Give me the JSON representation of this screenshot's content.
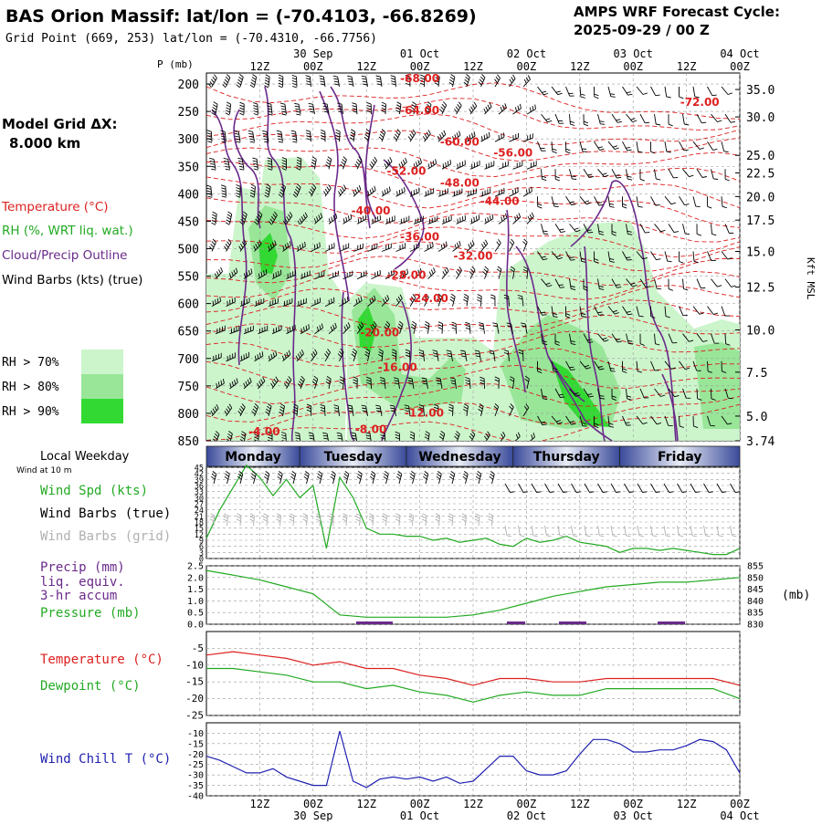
{
  "header": {
    "site_title": "BAS Orion Massif:  lat/lon = (-70.4103, -66.8269)",
    "grid_point": "Grid Point (669, 253) lat/lon = (-70.4310, -66.7756)",
    "cycle_label": "AMPS WRF Forecast Cycle:",
    "cycle_value": "2025-09-29 / 00  Z"
  },
  "left_panel": {
    "model_grid_label": "Model Grid ΔX:",
    "model_grid_value": "8.000 km",
    "legend": [
      {
        "label": "Temperature (°C)",
        "color": "#dd2020"
      },
      {
        "label": "RH (%, WRT liq. wat.)",
        "color": "#22aa22"
      },
      {
        "label": "Cloud/Precip Outline",
        "color": "#6a2a8a"
      },
      {
        "label": "Wind Barbs (kts) (true)",
        "color": "#000000"
      }
    ],
    "rh_swatches": [
      {
        "label": "RH > 70%",
        "color": "#ccf5cc"
      },
      {
        "label": "RH > 80%",
        "color": "#99e699"
      },
      {
        "label": "RH > 90%",
        "color": "#33d933"
      }
    ],
    "local_weekday": "Local Weekday",
    "wind_at": "Wind at 10 m",
    "panel2_labels": [
      {
        "label": "Wind Spd (kts)",
        "color": "#22aa22"
      },
      {
        "label": "Wind Barbs (true)",
        "color": "#000000"
      },
      {
        "label": "Wind Barbs (grid)",
        "color": "#b0b0b0"
      }
    ],
    "panel3_labels": [
      {
        "label": "Precip (mm)",
        "color": "#6a2a8a"
      },
      {
        "label": "liq. equiv.",
        "color": "#6a2a8a"
      },
      {
        "label": "3-hr accum",
        "color": "#6a2a8a"
      },
      {
        "label": "Pressure (mb)",
        "color": "#22aa22"
      }
    ],
    "panel4_labels": [
      {
        "label": "Temperature (°C)",
        "color": "#dd2020"
      },
      {
        "label": "Dewpoint (°C)",
        "color": "#22aa22"
      }
    ],
    "panel5_labels": [
      {
        "label": "Wind Chill T (°C)",
        "color": "#2020b0"
      }
    ]
  },
  "chart_data": [
    {
      "type": "heatmap",
      "name": "Vertical cross-section",
      "ylabel_left": "P (mb)",
      "ylabel_right": "Kft MSL",
      "pressure_ticks": [
        200,
        250,
        300,
        350,
        400,
        450,
        500,
        550,
        600,
        650,
        700,
        750,
        800,
        850
      ],
      "height_ticks": [
        "35.0",
        "30.0",
        "25.0",
        "22.5",
        "20.0",
        "17.5",
        "15.0",
        "12.5",
        "10.0",
        "7.5",
        "5.0",
        "3.74"
      ],
      "height_tick_pressure": [
        210,
        260,
        330,
        362,
        405,
        448,
        505,
        570,
        648,
        725,
        805,
        850
      ],
      "time_tick_labels": [
        "12Z",
        "00Z",
        "12Z",
        "00Z",
        "12Z",
        "00Z",
        "12Z",
        "00Z",
        "12Z",
        "00Z"
      ],
      "time_tick_hours": [
        12,
        24,
        36,
        48,
        60,
        72,
        84,
        96,
        108,
        120
      ],
      "date_labels": [
        {
          "label": "30 Sep",
          "hour": 24
        },
        {
          "label": "01 Oct",
          "hour": 48
        },
        {
          "label": "02 Oct",
          "hour": 72
        },
        {
          "label": "03 Oct",
          "hour": 96
        },
        {
          "label": "04 Oct",
          "hour": 120
        }
      ],
      "time_range_hours": [
        0,
        120
      ],
      "pressure_range": [
        180,
        850
      ],
      "temperature_labels": [
        {
          "text": "-68.00",
          "hour": 48,
          "p": 197
        },
        {
          "text": "-64.00",
          "hour": 48,
          "p": 255
        },
        {
          "text": "-72.00",
          "hour": 111,
          "p": 240
        },
        {
          "text": "-60.00",
          "hour": 57,
          "p": 312
        },
        {
          "text": "-56.00",
          "hour": 69,
          "p": 332
        },
        {
          "text": "-52.00",
          "hour": 45,
          "p": 365
        },
        {
          "text": "-48.00",
          "hour": 57,
          "p": 387
        },
        {
          "text": "-44.00",
          "hour": 66,
          "p": 420
        },
        {
          "text": "-40.00",
          "hour": 37,
          "p": 438
        },
        {
          "text": "-36.00",
          "hour": 48,
          "p": 485
        },
        {
          "text": "-32.00",
          "hour": 60,
          "p": 520
        },
        {
          "text": "-28.00",
          "hour": 45,
          "p": 555
        },
        {
          "text": "-24.00",
          "hour": 50,
          "p": 597
        },
        {
          "text": "-20.00",
          "hour": 39,
          "p": 660
        },
        {
          "text": "-16.00",
          "hour": 43,
          "p": 723
        },
        {
          "text": "-12.00",
          "hour": 49,
          "p": 806
        },
        {
          "text": "-8.00",
          "hour": 37,
          "p": 836
        },
        {
          "text": "-4.00",
          "hour": 13,
          "p": 840
        }
      ]
    },
    {
      "type": "line",
      "name": "10 m wind speed",
      "ylabel": "kts",
      "y_ticks": [
        45,
        42,
        39,
        36,
        33,
        30,
        27,
        24,
        21,
        18,
        15,
        12,
        9,
        6,
        3,
        0
      ],
      "ylim": [
        0,
        45
      ],
      "x_hours": [
        0,
        3,
        6,
        9,
        12,
        15,
        18,
        21,
        24,
        27,
        30,
        33,
        36,
        39,
        42,
        45,
        48,
        51,
        54,
        57,
        60,
        63,
        66,
        69,
        72,
        75,
        78,
        81,
        84,
        87,
        90,
        93,
        96,
        99,
        102,
        105,
        108,
        111,
        114,
        117,
        120
      ],
      "series": [
        {
          "color": "#22aa22",
          "values": [
            10,
            24,
            35,
            46,
            40,
            31,
            39,
            30,
            36,
            5,
            40,
            30,
            15,
            12,
            12,
            11,
            11,
            9,
            10,
            8,
            9,
            10,
            7,
            6,
            10,
            8,
            9,
            11,
            8,
            7,
            6,
            3,
            5,
            5,
            4,
            5,
            4,
            3,
            2,
            2,
            5
          ]
        }
      ]
    },
    {
      "type": "line",
      "name": "Precip and pressure",
      "y_ticks_left": [
        "2.5",
        "2.0",
        "1.5",
        "1.0",
        "0.5",
        "0.0"
      ],
      "y_ticks_right": [
        "855",
        "850",
        "845",
        "840",
        "835",
        "830"
      ],
      "ylabel_right": "(mb)",
      "ylim_left": [
        0,
        2.5
      ],
      "ylim_right": [
        830,
        855
      ],
      "x_hours": [
        0,
        6,
        12,
        18,
        24,
        30,
        36,
        42,
        48,
        54,
        60,
        66,
        72,
        78,
        84,
        90,
        96,
        102,
        108,
        114,
        120
      ],
      "series": [
        {
          "name": "Pressure (mb)",
          "color": "#22aa22",
          "values": [
            853,
            851,
            849,
            846,
            843,
            834,
            833,
            833,
            833,
            833,
            834,
            836,
            839,
            842,
            844,
            846,
            847,
            848,
            848,
            849,
            850
          ]
        }
      ]
    },
    {
      "type": "line",
      "name": "Temperature and dewpoint",
      "y_ticks": [
        "-5",
        "-10",
        "-15",
        "-20",
        "-25"
      ],
      "ylim": [
        -25,
        0
      ],
      "x_hours": [
        0,
        6,
        12,
        18,
        24,
        30,
        36,
        42,
        48,
        54,
        60,
        66,
        72,
        78,
        84,
        90,
        96,
        102,
        108,
        114,
        120
      ],
      "series": [
        {
          "name": "Temperature",
          "color": "#dd2020",
          "values": [
            -7,
            -6,
            -7,
            -8,
            -10,
            -9,
            -11,
            -11,
            -13,
            -14,
            -16,
            -14,
            -14,
            -15,
            -15,
            -14,
            -14,
            -14,
            -14,
            -14,
            -16
          ]
        },
        {
          "name": "Dewpoint",
          "color": "#22aa22",
          "values": [
            -11,
            -11,
            -12,
            -13,
            -15,
            -15,
            -17,
            -16,
            -18,
            -19,
            -21,
            -19,
            -18,
            -19,
            -19,
            -17,
            -17,
            -17,
            -17,
            -17,
            -20
          ]
        }
      ]
    },
    {
      "type": "line",
      "name": "Wind chill",
      "y_ticks": [
        "-10",
        "-15",
        "-20",
        "-25",
        "-30",
        "-35",
        "-40"
      ],
      "ylim": [
        -40,
        -5
      ],
      "x_hours": [
        0,
        3,
        6,
        9,
        12,
        15,
        18,
        21,
        24,
        27,
        30,
        33,
        36,
        39,
        42,
        45,
        48,
        51,
        54,
        57,
        60,
        63,
        66,
        69,
        72,
        75,
        78,
        81,
        84,
        87,
        90,
        93,
        96,
        99,
        102,
        105,
        108,
        111,
        114,
        117,
        120
      ],
      "series": [
        {
          "name": "Wind Chill T",
          "color": "#2020b0",
          "values": [
            -21,
            -23,
            -26,
            -29,
            -29,
            -27,
            -31,
            -33,
            -35,
            -35,
            -9,
            -33,
            -36,
            -32,
            -31,
            -32,
            -31,
            -33,
            -31,
            -34,
            -33,
            -27,
            -21,
            -21,
            -28,
            -30,
            -30,
            -28,
            -20,
            -13,
            -13,
            -15,
            -19,
            -19,
            -18,
            -18,
            -16,
            -13,
            -14,
            -18,
            -29
          ]
        }
      ]
    }
  ],
  "weekdays": [
    {
      "label": "Monday",
      "start_hour": 0,
      "end_hour": 21
    },
    {
      "label": "Tuesday",
      "start_hour": 21,
      "end_hour": 45
    },
    {
      "label": "Wednesday",
      "start_hour": 45,
      "end_hour": 69
    },
    {
      "label": "Thursday",
      "start_hour": 69,
      "end_hour": 93
    },
    {
      "label": "Friday",
      "start_hour": 93,
      "end_hour": 120
    }
  ],
  "colors": {
    "temperature": "#dd2020",
    "rh": "#22aa22",
    "cloud_outline": "#6a2a8a",
    "barbs": "#000000",
    "grid_barbs": "#b0b0b0",
    "wind_chill": "#2020b0",
    "weekday_bar": "#4a5aa8"
  }
}
